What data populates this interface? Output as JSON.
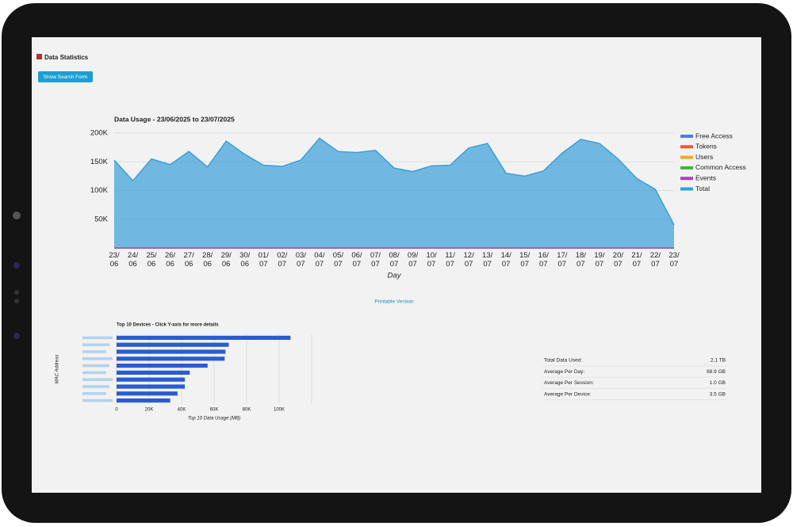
{
  "header": {
    "title": "Data Statistics"
  },
  "button": {
    "label": "Show Search Form"
  },
  "chart_data": [
    {
      "type": "area",
      "title": "Data Usage - 23/06/2025 to 23/07/2025",
      "x_label": "Day",
      "categories": [
        "23/06",
        "24/06",
        "25/06",
        "26/06",
        "27/06",
        "28/06",
        "29/06",
        "30/06",
        "01/07",
        "02/07",
        "03/07",
        "04/07",
        "05/07",
        "06/07",
        "07/07",
        "08/07",
        "09/07",
        "10/07",
        "11/07",
        "12/07",
        "13/07",
        "14/07",
        "15/07",
        "16/07",
        "17/07",
        "18/07",
        "19/07",
        "20/07",
        "21/07",
        "22/07",
        "23/07"
      ],
      "series": [
        {
          "name": "Free Access",
          "color": "#4f7fd6",
          "values": [
            0,
            0,
            0,
            0,
            0,
            0,
            0,
            0,
            0,
            0,
            0,
            0,
            0,
            0,
            0,
            0,
            0,
            0,
            0,
            0,
            0,
            0,
            0,
            0,
            0,
            0,
            0,
            0,
            0,
            0,
            0
          ]
        },
        {
          "name": "Tokens",
          "color": "#e8593c",
          "values": [
            0,
            0,
            0,
            0,
            0,
            0,
            0,
            0,
            0,
            0,
            0,
            0,
            0,
            0,
            0,
            0,
            0,
            0,
            0,
            0,
            0,
            0,
            0,
            0,
            0,
            0,
            0,
            0,
            0,
            0,
            0
          ]
        },
        {
          "name": "Users",
          "color": "#f0a830",
          "values": [
            0,
            0,
            0,
            0,
            0,
            0,
            0,
            0,
            0,
            0,
            0,
            0,
            0,
            0,
            0,
            0,
            0,
            0,
            0,
            0,
            0,
            0,
            0,
            0,
            0,
            0,
            0,
            0,
            0,
            0,
            0
          ]
        },
        {
          "name": "Common Access",
          "color": "#3cb53c",
          "values": [
            0,
            0,
            0,
            0,
            0,
            0,
            0,
            0,
            0,
            0,
            0,
            0,
            0,
            0,
            0,
            0,
            0,
            0,
            0,
            0,
            0,
            0,
            0,
            0,
            0,
            0,
            0,
            0,
            0,
            0,
            0
          ]
        },
        {
          "name": "Events",
          "color": "#b03cc0",
          "values": [
            0,
            0,
            0,
            0,
            0,
            0,
            0,
            0,
            0,
            0,
            0,
            0,
            0,
            0,
            0,
            0,
            0,
            0,
            0,
            0,
            0,
            0,
            0,
            0,
            0,
            0,
            0,
            0,
            0,
            0,
            0
          ]
        },
        {
          "name": "Total",
          "color": "#3aa0d8",
          "values": [
            153000,
            117000,
            155000,
            145000,
            168000,
            141000,
            186000,
            163000,
            144000,
            142000,
            153000,
            191000,
            168000,
            166000,
            170000,
            139000,
            133000,
            143000,
            144000,
            174000,
            182000,
            130000,
            125000,
            134000,
            165000,
            189000,
            182000,
            155000,
            121000,
            102000,
            40000
          ]
        }
      ],
      "ylim": [
        0,
        200000
      ],
      "yticks": [
        {
          "value": 50000,
          "label": "50K"
        },
        {
          "value": 100000,
          "label": "100K"
        },
        {
          "value": 150000,
          "label": "150K"
        },
        {
          "value": 200000,
          "label": "200K"
        }
      ],
      "grid": true,
      "legend": "right"
    },
    {
      "type": "hbar",
      "title": "Top 10 Devices - Click Y-axis for more details",
      "x_label": "Top 10 Data Usage (MB)",
      "y_label": "MAC Address",
      "categories": [
        null,
        null,
        null,
        null,
        null,
        null,
        null,
        null,
        null,
        null
      ],
      "values": [
        107000,
        69000,
        67000,
        66500,
        56000,
        45000,
        42000,
        42000,
        37500,
        33000
      ],
      "color": "#2a5bd0",
      "xlim": [
        0,
        120000
      ],
      "xticks": [
        0,
        {
          "value": 20000,
          "label": "20K"
        },
        {
          "value": 40000,
          "label": "40K"
        },
        {
          "value": 60000,
          "label": "60K"
        },
        {
          "value": 80000,
          "label": "80K"
        },
        {
          "value": 100000,
          "label": "100K"
        }
      ],
      "grid": true
    }
  ],
  "printable_link": "Printable Version",
  "summary": {
    "rows": [
      [
        "Total Data Used:",
        "2.1 TB"
      ],
      [
        "Average Per Day:",
        "68.9 GB"
      ],
      [
        "Average Per Session:",
        "1.0 GB"
      ],
      [
        "Average Per Device:",
        "3.5 GB"
      ]
    ]
  }
}
